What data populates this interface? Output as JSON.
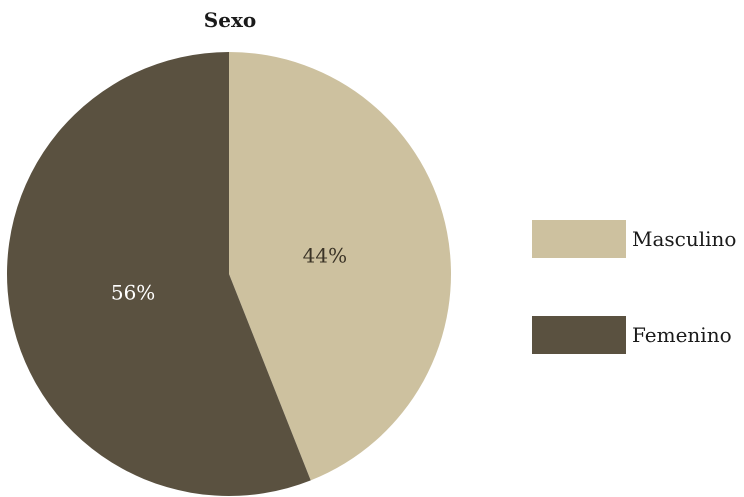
{
  "chart_data": {
    "type": "pie",
    "title": "Sexo",
    "categories": [
      "Masculino",
      "Femenino"
    ],
    "values": [
      44,
      56
    ],
    "value_labels": [
      "44%",
      "56%"
    ],
    "colors": [
      "#cdc19f",
      "#5a5140"
    ],
    "label_colors": [
      "#3a3326",
      "#ffffff"
    ],
    "legend_position": "right"
  }
}
